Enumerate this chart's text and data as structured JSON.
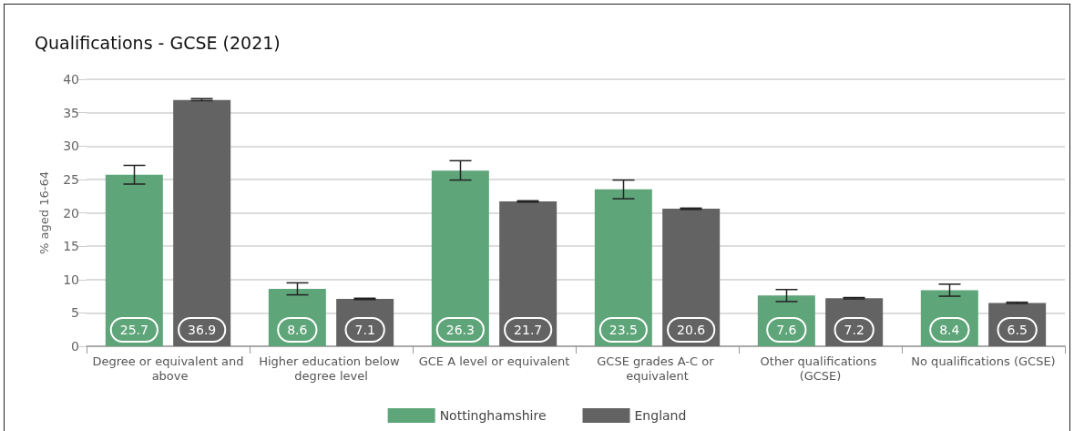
{
  "chart_data": {
    "type": "bar",
    "title": "Qualifications - GCSE (2021)",
    "ylabel": "% aged 16-64",
    "categories": [
      "Degree or equivalent and above",
      "Higher education below degree level",
      "GCE A level or equivalent",
      "GCSE grades A-C or equivalent",
      "Other qualifications (GCSE)",
      "No qualifications (GCSE)"
    ],
    "series": [
      {
        "name": "Nottinghamshire",
        "color": "#5fa57a",
        "values": [
          25.7,
          8.6,
          26.3,
          23.5,
          7.6,
          8.4
        ],
        "errors": [
          [
            24.3,
            27.1
          ],
          [
            7.7,
            9.5
          ],
          [
            24.9,
            27.8
          ],
          [
            22.1,
            24.9
          ],
          [
            6.7,
            8.5
          ],
          [
            7.5,
            9.3
          ]
        ]
      },
      {
        "name": "England",
        "color": "#636363",
        "values": [
          36.9,
          7.1,
          21.7,
          20.6,
          7.2,
          6.5
        ],
        "errors": [
          [
            36.8,
            37.1
          ],
          [
            7.0,
            7.2
          ],
          [
            21.6,
            21.8
          ],
          [
            20.5,
            20.7
          ],
          [
            7.1,
            7.3
          ],
          [
            6.4,
            6.6
          ]
        ]
      }
    ],
    "ylim": [
      0,
      40
    ],
    "yticks": [
      0,
      5,
      10,
      15,
      20,
      25,
      30,
      35,
      40
    ],
    "grid": "y",
    "legend": "bottom",
    "data_labels": true
  }
}
